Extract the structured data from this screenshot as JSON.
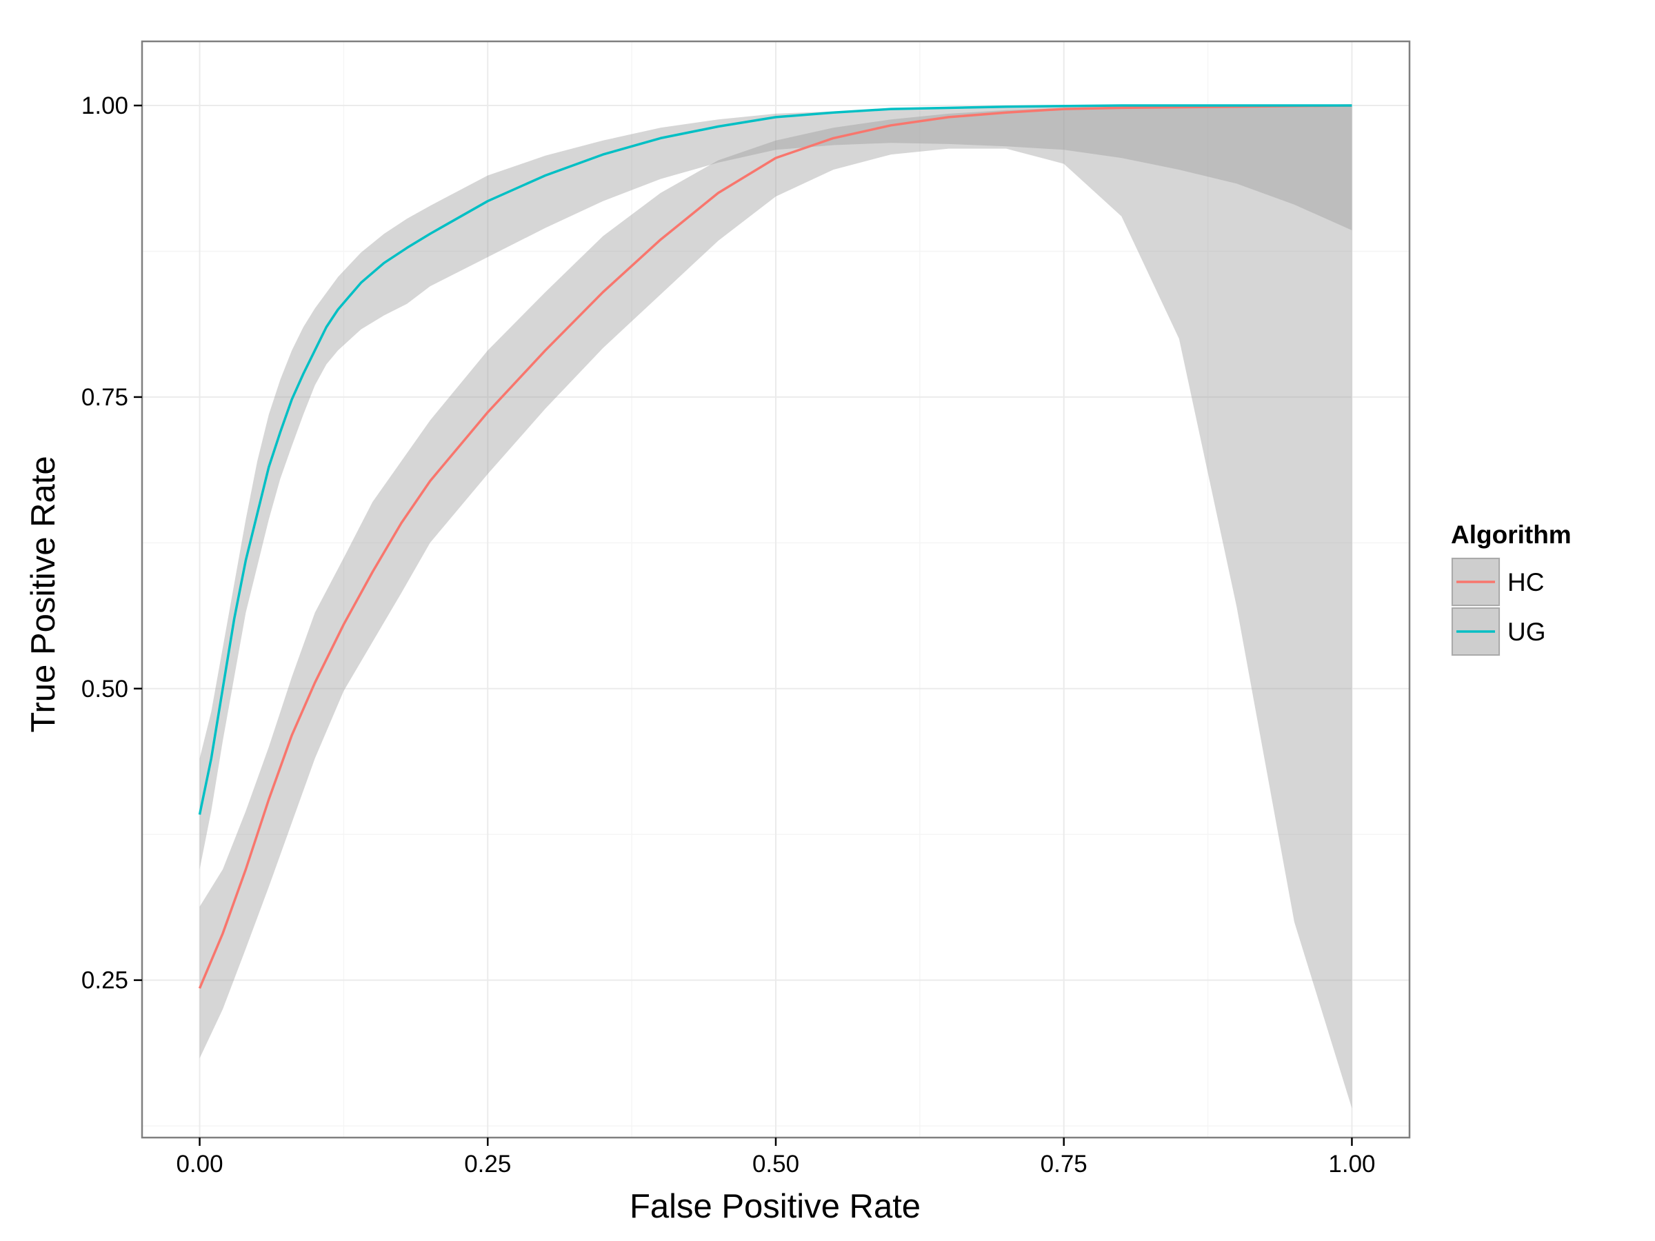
{
  "chart_data": {
    "type": "line",
    "title": "",
    "xlabel": "False Positive Rate",
    "ylabel": "True Positive Rate",
    "xlim": [
      -0.05,
      1.05
    ],
    "ylim": [
      0.115,
      1.055
    ],
    "x_ticks": [
      0.0,
      0.25,
      0.5,
      0.75,
      1.0
    ],
    "x_tick_labels": [
      "0.00",
      "0.25",
      "0.50",
      "0.75",
      "1.00"
    ],
    "y_ticks": [
      0.25,
      0.5,
      0.75,
      1.0
    ],
    "y_tick_labels": [
      "0.25",
      "0.50",
      "0.75",
      "1.00"
    ],
    "grid": true,
    "legend": {
      "title": "Algorithm",
      "position": "right"
    },
    "series": [
      {
        "name": "HC",
        "color": "#F8766D",
        "points": [
          [
            0.0,
            0.243
          ],
          [
            0.02,
            0.29
          ],
          [
            0.04,
            0.345
          ],
          [
            0.06,
            0.405
          ],
          [
            0.08,
            0.46
          ],
          [
            0.1,
            0.505
          ],
          [
            0.125,
            0.555
          ],
          [
            0.15,
            0.6
          ],
          [
            0.175,
            0.642
          ],
          [
            0.2,
            0.678
          ],
          [
            0.25,
            0.737
          ],
          [
            0.3,
            0.79
          ],
          [
            0.35,
            0.84
          ],
          [
            0.4,
            0.885
          ],
          [
            0.45,
            0.925
          ],
          [
            0.5,
            0.955
          ],
          [
            0.55,
            0.972
          ],
          [
            0.6,
            0.983
          ],
          [
            0.65,
            0.99
          ],
          [
            0.7,
            0.994
          ],
          [
            0.75,
            0.997
          ],
          [
            0.8,
            0.998
          ],
          [
            0.9,
            0.999
          ],
          [
            1.0,
            1.0
          ]
        ],
        "band_upper": [
          [
            0.0,
            0.313
          ],
          [
            0.02,
            0.345
          ],
          [
            0.04,
            0.395
          ],
          [
            0.06,
            0.45
          ],
          [
            0.08,
            0.51
          ],
          [
            0.1,
            0.565
          ],
          [
            0.125,
            0.612
          ],
          [
            0.15,
            0.66
          ],
          [
            0.175,
            0.695
          ],
          [
            0.2,
            0.73
          ],
          [
            0.25,
            0.79
          ],
          [
            0.3,
            0.84
          ],
          [
            0.35,
            0.888
          ],
          [
            0.4,
            0.925
          ],
          [
            0.45,
            0.953
          ],
          [
            0.5,
            0.97
          ],
          [
            0.55,
            0.981
          ],
          [
            0.6,
            0.988
          ],
          [
            0.65,
            0.993
          ],
          [
            0.7,
            0.996
          ],
          [
            0.75,
            0.998
          ],
          [
            0.8,
            0.999
          ],
          [
            0.9,
            0.999
          ],
          [
            1.0,
            1.0
          ]
        ],
        "band_lower": [
          [
            0.0,
            0.183
          ],
          [
            0.02,
            0.225
          ],
          [
            0.04,
            0.277
          ],
          [
            0.06,
            0.33
          ],
          [
            0.08,
            0.385
          ],
          [
            0.1,
            0.44
          ],
          [
            0.125,
            0.498
          ],
          [
            0.15,
            0.54
          ],
          [
            0.175,
            0.582
          ],
          [
            0.2,
            0.625
          ],
          [
            0.25,
            0.684
          ],
          [
            0.3,
            0.74
          ],
          [
            0.35,
            0.792
          ],
          [
            0.4,
            0.838
          ],
          [
            0.45,
            0.884
          ],
          [
            0.5,
            0.922
          ],
          [
            0.55,
            0.945
          ],
          [
            0.6,
            0.958
          ],
          [
            0.65,
            0.963
          ],
          [
            0.7,
            0.963
          ],
          [
            0.75,
            0.95
          ],
          [
            0.8,
            0.905
          ],
          [
            0.85,
            0.8
          ],
          [
            0.9,
            0.57
          ],
          [
            0.95,
            0.3
          ],
          [
            1.0,
            0.14
          ]
        ]
      },
      {
        "name": "UG",
        "color": "#00BFC4",
        "points": [
          [
            0.0,
            0.392
          ],
          [
            0.01,
            0.44
          ],
          [
            0.02,
            0.5
          ],
          [
            0.03,
            0.56
          ],
          [
            0.04,
            0.61
          ],
          [
            0.05,
            0.65
          ],
          [
            0.06,
            0.69
          ],
          [
            0.07,
            0.72
          ],
          [
            0.08,
            0.748
          ],
          [
            0.09,
            0.77
          ],
          [
            0.1,
            0.79
          ],
          [
            0.11,
            0.81
          ],
          [
            0.12,
            0.825
          ],
          [
            0.14,
            0.848
          ],
          [
            0.16,
            0.865
          ],
          [
            0.18,
            0.878
          ],
          [
            0.2,
            0.89
          ],
          [
            0.25,
            0.918
          ],
          [
            0.3,
            0.94
          ],
          [
            0.35,
            0.958
          ],
          [
            0.4,
            0.972
          ],
          [
            0.45,
            0.982
          ],
          [
            0.5,
            0.99
          ],
          [
            0.55,
            0.994
          ],
          [
            0.6,
            0.997
          ],
          [
            0.7,
            0.999
          ],
          [
            0.8,
            1.0
          ],
          [
            1.0,
            1.0
          ]
        ],
        "band_upper": [
          [
            0.0,
            0.44
          ],
          [
            0.01,
            0.48
          ],
          [
            0.02,
            0.535
          ],
          [
            0.03,
            0.59
          ],
          [
            0.04,
            0.645
          ],
          [
            0.05,
            0.695
          ],
          [
            0.06,
            0.735
          ],
          [
            0.07,
            0.765
          ],
          [
            0.08,
            0.79
          ],
          [
            0.09,
            0.81
          ],
          [
            0.1,
            0.826
          ],
          [
            0.12,
            0.853
          ],
          [
            0.14,
            0.874
          ],
          [
            0.16,
            0.89
          ],
          [
            0.18,
            0.903
          ],
          [
            0.2,
            0.914
          ],
          [
            0.25,
            0.94
          ],
          [
            0.3,
            0.957
          ],
          [
            0.35,
            0.97
          ],
          [
            0.4,
            0.981
          ],
          [
            0.45,
            0.988
          ],
          [
            0.5,
            0.993
          ],
          [
            0.6,
            0.997
          ],
          [
            0.7,
            0.999
          ],
          [
            0.8,
            1.0
          ],
          [
            1.0,
            1.0
          ]
        ],
        "band_lower": [
          [
            0.0,
            0.345
          ],
          [
            0.01,
            0.395
          ],
          [
            0.02,
            0.455
          ],
          [
            0.03,
            0.51
          ],
          [
            0.04,
            0.565
          ],
          [
            0.05,
            0.605
          ],
          [
            0.06,
            0.645
          ],
          [
            0.07,
            0.68
          ],
          [
            0.08,
            0.708
          ],
          [
            0.09,
            0.735
          ],
          [
            0.1,
            0.76
          ],
          [
            0.11,
            0.778
          ],
          [
            0.12,
            0.79
          ],
          [
            0.14,
            0.808
          ],
          [
            0.16,
            0.82
          ],
          [
            0.18,
            0.83
          ],
          [
            0.2,
            0.845
          ],
          [
            0.25,
            0.87
          ],
          [
            0.3,
            0.895
          ],
          [
            0.35,
            0.918
          ],
          [
            0.4,
            0.937
          ],
          [
            0.45,
            0.951
          ],
          [
            0.5,
            0.962
          ],
          [
            0.55,
            0.966
          ],
          [
            0.6,
            0.968
          ],
          [
            0.65,
            0.967
          ],
          [
            0.7,
            0.965
          ],
          [
            0.75,
            0.962
          ],
          [
            0.8,
            0.955
          ],
          [
            0.85,
            0.945
          ],
          [
            0.9,
            0.933
          ],
          [
            0.95,
            0.915
          ],
          [
            1.0,
            0.893
          ]
        ]
      }
    ]
  }
}
